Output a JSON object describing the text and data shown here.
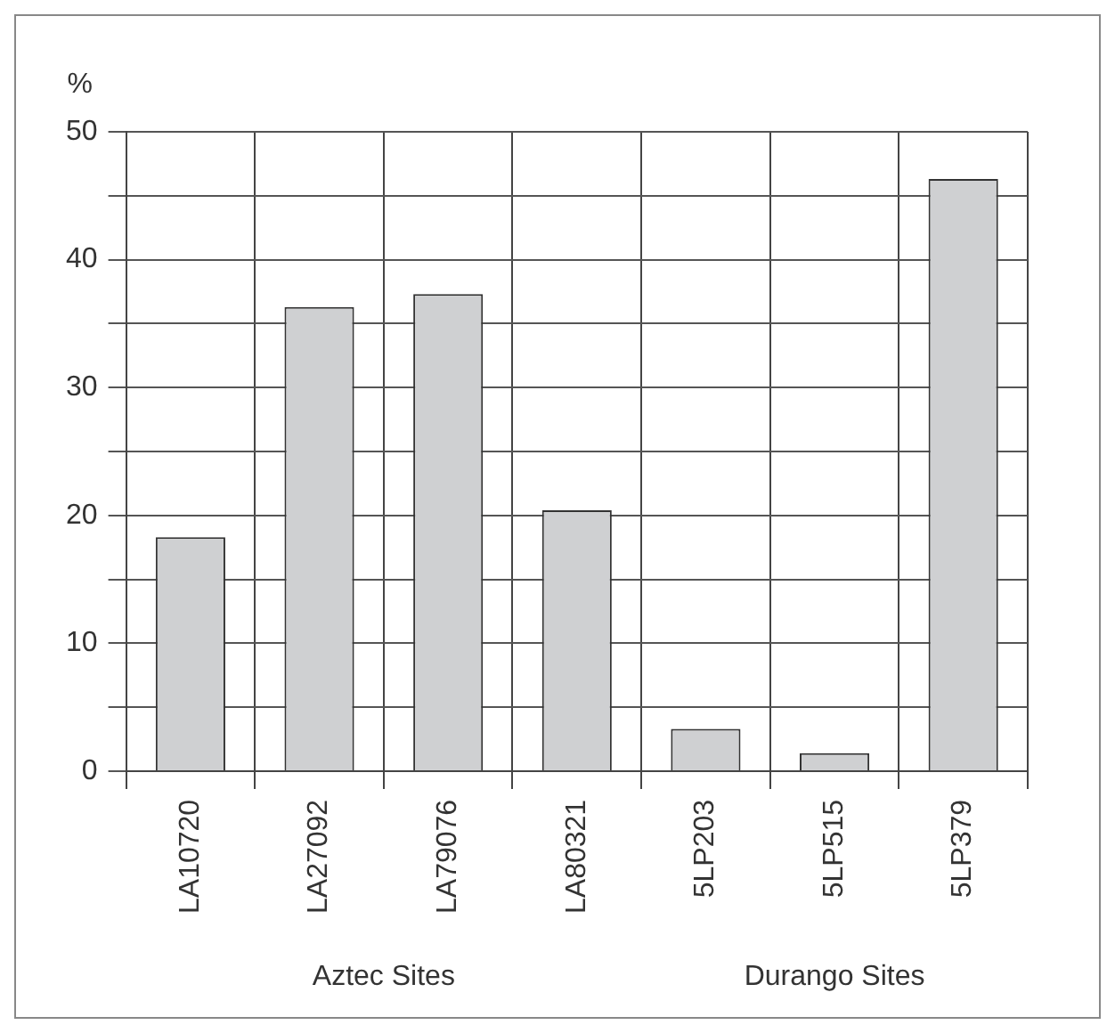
{
  "chart_data": {
    "type": "bar",
    "ylabel": "%",
    "categories": [
      "LA10720",
      "LA27092",
      "LA79076",
      "LA80321",
      "5LP203",
      "5LP515",
      "5LP379"
    ],
    "values": [
      18.3,
      36.3,
      37.3,
      20.4,
      3.3,
      1.4,
      46.3
    ],
    "color": "#cfd0d2",
    "ylim": [
      0,
      50
    ],
    "yticks": [
      0,
      {
        "value": 5,
        "label": null
      },
      10,
      {
        "value": 15,
        "label": null
      },
      20,
      {
        "value": 25,
        "label": null
      },
      30,
      {
        "value": 35,
        "label": null
      },
      40,
      {
        "value": 45,
        "label": null
      },
      50
    ],
    "grid": true,
    "annotations": [
      "Aztec Sites",
      "Durango Sites"
    ]
  }
}
